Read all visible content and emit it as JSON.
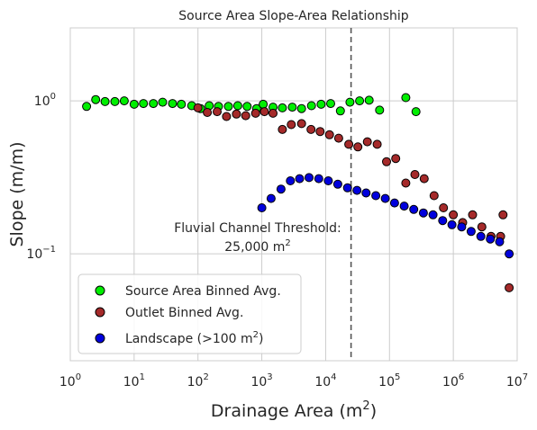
{
  "chart_data": {
    "type": "scatter",
    "title": "Source Area Slope-Area Relationship",
    "xlabel": "Drainage Area (m",
    "xlabel_sup": "2",
    "xlabel_end": ")",
    "ylabel": "Slope (m/m)",
    "xscale": "log",
    "yscale": "log",
    "xlim": [
      1,
      10000000
    ],
    "ylim": [
      0.02,
      3.0
    ],
    "grid": true,
    "legend_position": "lower-left",
    "x_ticks": [
      {
        "base": "10",
        "exp": "0"
      },
      {
        "base": "10",
        "exp": "1"
      },
      {
        "base": "10",
        "exp": "2"
      },
      {
        "base": "10",
        "exp": "3"
      },
      {
        "base": "10",
        "exp": "4"
      },
      {
        "base": "10",
        "exp": "5"
      },
      {
        "base": "10",
        "exp": "6"
      },
      {
        "base": "10",
        "exp": "7"
      }
    ],
    "y_ticks": [
      {
        "base": "10",
        "exp": "0"
      },
      {
        "base": "10",
        "exp": "−1"
      }
    ],
    "threshold": {
      "x": 25000,
      "label_line1": "Fluvial Channel Threshold:",
      "label_line2": "25,000 m",
      "label_sup": "2"
    },
    "series": [
      {
        "name": "Source Area Binned Avg.",
        "color": "#00ee00",
        "points": [
          [
            1.8,
            0.92
          ],
          [
            2.5,
            1.02
          ],
          [
            3.5,
            0.99
          ],
          [
            5,
            0.99
          ],
          [
            7,
            1.0
          ],
          [
            10,
            0.95
          ],
          [
            14,
            0.96
          ],
          [
            20,
            0.96
          ],
          [
            28,
            0.98
          ],
          [
            40,
            0.96
          ],
          [
            55,
            0.95
          ],
          [
            80,
            0.93
          ],
          [
            110,
            0.89
          ],
          [
            150,
            0.93
          ],
          [
            210,
            0.92
          ],
          [
            300,
            0.92
          ],
          [
            420,
            0.93
          ],
          [
            590,
            0.92
          ],
          [
            830,
            0.89
          ],
          [
            1050,
            0.95
          ],
          [
            1500,
            0.91
          ],
          [
            2100,
            0.9
          ],
          [
            3000,
            0.91
          ],
          [
            4200,
            0.89
          ],
          [
            6000,
            0.93
          ],
          [
            8500,
            0.95
          ],
          [
            12000,
            0.96
          ],
          [
            17000,
            0.86
          ],
          [
            24000,
            0.98
          ],
          [
            34000,
            1.0
          ],
          [
            48000,
            1.01
          ],
          [
            70000,
            0.87
          ],
          [
            180000,
            1.05
          ],
          [
            260000,
            0.85
          ]
        ]
      },
      {
        "name": "Outlet Binned Avg.",
        "color": "#a52a2a",
        "points": [
          [
            100,
            0.9
          ],
          [
            140,
            0.84
          ],
          [
            200,
            0.85
          ],
          [
            280,
            0.79
          ],
          [
            400,
            0.82
          ],
          [
            560,
            0.8
          ],
          [
            800,
            0.83
          ],
          [
            1100,
            0.85
          ],
          [
            1500,
            0.83
          ],
          [
            2100,
            0.65
          ],
          [
            2900,
            0.7
          ],
          [
            4200,
            0.71
          ],
          [
            5900,
            0.65
          ],
          [
            8200,
            0.63
          ],
          [
            11500,
            0.6
          ],
          [
            16000,
            0.57
          ],
          [
            23000,
            0.52
          ],
          [
            32000,
            0.5
          ],
          [
            45000,
            0.54
          ],
          [
            64000,
            0.52
          ],
          [
            90000,
            0.4
          ],
          [
            125000,
            0.42
          ],
          [
            180000,
            0.29
          ],
          [
            250000,
            0.33
          ],
          [
            350000,
            0.31
          ],
          [
            500000,
            0.24
          ],
          [
            700000,
            0.2
          ],
          [
            1000000,
            0.18
          ],
          [
            1400000,
            0.16
          ],
          [
            2000000,
            0.18
          ],
          [
            2800000,
            0.15
          ],
          [
            3900000,
            0.13
          ],
          [
            5500000,
            0.13
          ],
          [
            6000000,
            0.18
          ],
          [
            7500000,
            0.06
          ]
        ]
      },
      {
        "name": "Landscape (>100 m",
        "name_sup": "2",
        "name_end": ")",
        "color": "#0000dd",
        "points": [
          [
            1000,
            0.2
          ],
          [
            1400,
            0.23
          ],
          [
            2000,
            0.265
          ],
          [
            2800,
            0.3
          ],
          [
            3900,
            0.31
          ],
          [
            5500,
            0.315
          ],
          [
            7800,
            0.31
          ],
          [
            11000,
            0.3
          ],
          [
            15500,
            0.285
          ],
          [
            22000,
            0.27
          ],
          [
            31000,
            0.26
          ],
          [
            43000,
            0.25
          ],
          [
            61000,
            0.24
          ],
          [
            86000,
            0.23
          ],
          [
            120000,
            0.215
          ],
          [
            170000,
            0.205
          ],
          [
            240000,
            0.195
          ],
          [
            340000,
            0.185
          ],
          [
            480000,
            0.18
          ],
          [
            680000,
            0.165
          ],
          [
            950000,
            0.155
          ],
          [
            1350000,
            0.15
          ],
          [
            1900000,
            0.14
          ],
          [
            2700000,
            0.13
          ],
          [
            3800000,
            0.125
          ],
          [
            5300000,
            0.12
          ],
          [
            7500000,
            0.1
          ]
        ]
      }
    ]
  }
}
